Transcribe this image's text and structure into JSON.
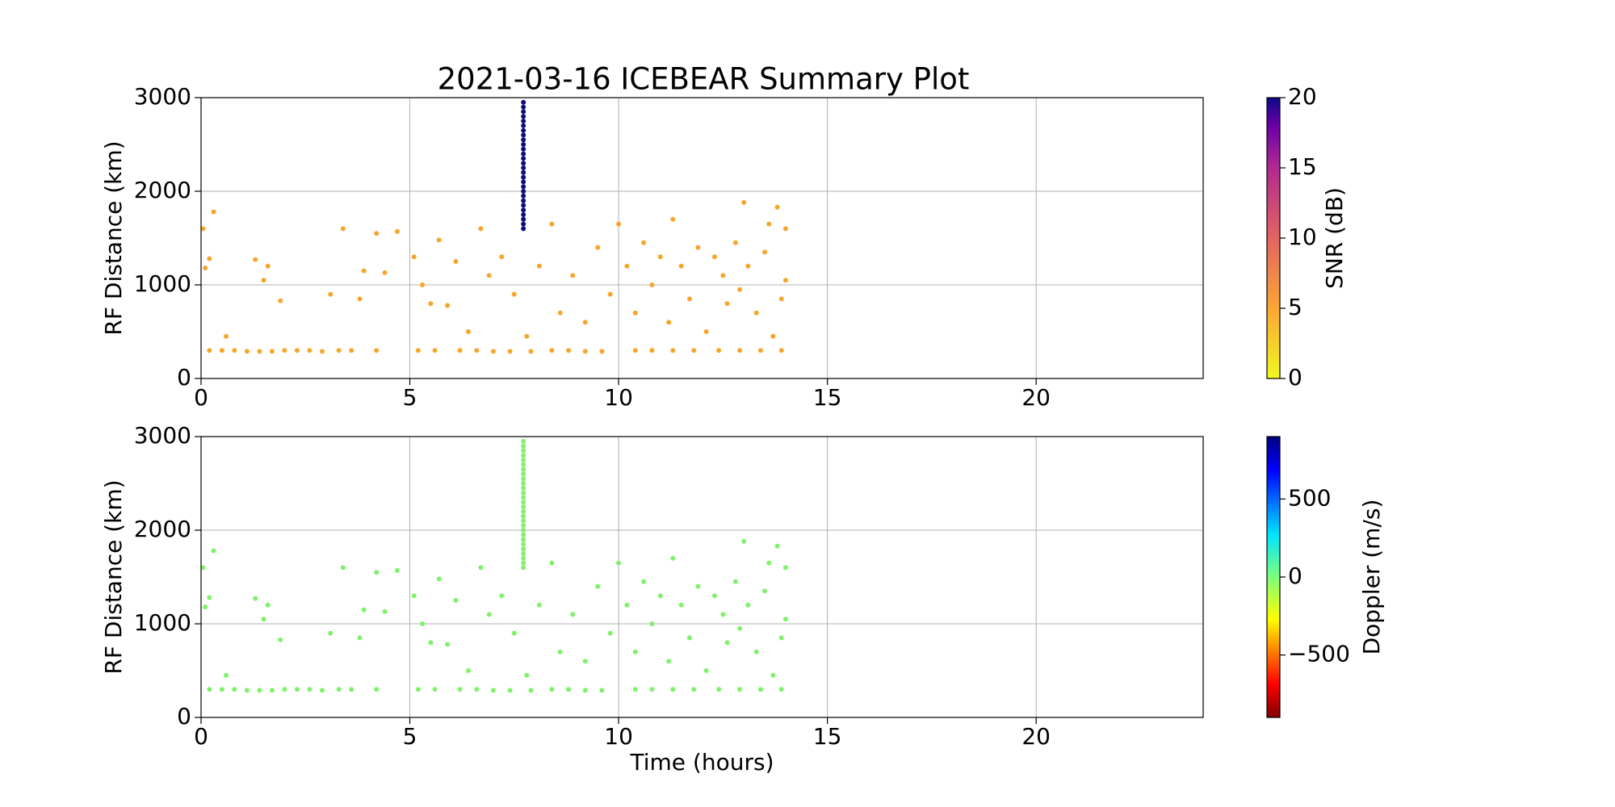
{
  "chart_data": [
    {
      "type": "scatter",
      "title": "2021-03-16 ICEBEAR Summary Plot",
      "ylabel": "RF Distance (km)",
      "xlim": [
        0,
        24
      ],
      "xticks": [
        0,
        5,
        10,
        15,
        20
      ],
      "ylim": [
        0,
        3000
      ],
      "yticks": [
        0,
        1000,
        2000,
        3000
      ],
      "grid": true,
      "colorbar": {
        "label": "SNR (dB)",
        "lim": [
          0,
          20
        ],
        "ticks": [
          0,
          5,
          10,
          15,
          20
        ]
      },
      "series": [
        {
          "color": "#f7a62b",
          "x": [
            0.2,
            0.5,
            0.8,
            1.1,
            1.4,
            1.7,
            2.0,
            2.3,
            2.6,
            2.9,
            3.3,
            3.6,
            4.2,
            5.2,
            5.6,
            6.2,
            6.6,
            7.0,
            7.4,
            7.9,
            8.4,
            8.8,
            9.2,
            9.6,
            10.4,
            10.8,
            11.3,
            11.8,
            12.4,
            12.9,
            13.4,
            13.9,
            0.05,
            0.1,
            0.3,
            0.2,
            0.6,
            1.3,
            1.5,
            1.6,
            1.9,
            3.1,
            3.4,
            3.8,
            3.9,
            4.2,
            4.4,
            4.7,
            5.1,
            5.3,
            5.5,
            5.7,
            5.9,
            6.1,
            6.4,
            6.7,
            6.9,
            7.2,
            7.5,
            7.8,
            8.1,
            8.4,
            8.6,
            8.9,
            9.2,
            9.5,
            9.8,
            10.0,
            10.2,
            10.4,
            10.6,
            10.8,
            11.0,
            11.2,
            11.3,
            11.5,
            11.7,
            11.9,
            12.1,
            12.3,
            12.5,
            12.6,
            12.8,
            12.9,
            13.0,
            13.1,
            13.3,
            13.5,
            13.6,
            13.7,
            13.8,
            13.9,
            14.0,
            14.0
          ],
          "values": [
            300,
            300,
            300,
            290,
            290,
            290,
            300,
            300,
            300,
            290,
            300,
            300,
            300,
            300,
            300,
            300,
            300,
            290,
            290,
            290,
            300,
            300,
            290,
            290,
            300,
            300,
            300,
            300,
            300,
            300,
            300,
            300,
            1600,
            1180,
            1780,
            1280,
            450,
            1270,
            1050,
            1200,
            830,
            900,
            1600,
            850,
            1150,
            1550,
            1130,
            1570,
            1300,
            1000,
            800,
            1480,
            780,
            1250,
            500,
            1600,
            1100,
            1300,
            900,
            450,
            1200,
            1650,
            700,
            1100,
            600,
            1400,
            900,
            1650,
            1200,
            700,
            1450,
            1000,
            1300,
            600,
            1700,
            1200,
            850,
            1400,
            500,
            1300,
            1100,
            800,
            1450,
            950,
            1880,
            1200,
            700,
            1350,
            1650,
            450,
            1830,
            850,
            1600,
            1050
          ]
        },
        {
          "color": "#120c78",
          "x": [
            7.72,
            7.72,
            7.72,
            7.72,
            7.72,
            7.72,
            7.72,
            7.72,
            7.72,
            7.72,
            7.72,
            7.72,
            7.72,
            7.72,
            7.72,
            7.72,
            7.72,
            7.72,
            7.72,
            7.72,
            7.72,
            7.72,
            7.72,
            7.72,
            7.72,
            7.72,
            7.72,
            7.72
          ],
          "values": [
            1600,
            1650,
            1700,
            1750,
            1800,
            1850,
            1900,
            1950,
            2000,
            2050,
            2100,
            2150,
            2200,
            2250,
            2300,
            2350,
            2400,
            2450,
            2500,
            2550,
            2600,
            2650,
            2700,
            2750,
            2800,
            2850,
            2900,
            2950
          ]
        }
      ]
    },
    {
      "type": "scatter",
      "ylabel": "RF Distance (km)",
      "xlabel": "Time (hours)",
      "xlim": [
        0,
        24
      ],
      "xticks": [
        0,
        5,
        10,
        15,
        20
      ],
      "ylim": [
        0,
        3000
      ],
      "yticks": [
        0,
        1000,
        2000,
        3000
      ],
      "grid": true,
      "colorbar": {
        "label": "Doppler (m/s)",
        "lim": [
          -900,
          900
        ],
        "ticks": [
          {
            "value": -500,
            "label": "−500"
          },
          0,
          500
        ]
      },
      "series": [
        {
          "color": "#7ef26a",
          "x": [
            0.2,
            0.5,
            0.8,
            1.1,
            1.4,
            1.7,
            2.0,
            2.3,
            2.6,
            2.9,
            3.3,
            3.6,
            4.2,
            5.2,
            5.6,
            6.2,
            6.6,
            7.0,
            7.4,
            7.9,
            8.4,
            8.8,
            9.2,
            9.6,
            10.4,
            10.8,
            11.3,
            11.8,
            12.4,
            12.9,
            13.4,
            13.9,
            0.05,
            0.1,
            0.3,
            0.2,
            0.6,
            1.3,
            1.5,
            1.6,
            1.9,
            3.1,
            3.4,
            3.8,
            3.9,
            4.2,
            4.4,
            4.7,
            5.1,
            5.3,
            5.5,
            5.7,
            5.9,
            6.1,
            6.4,
            6.7,
            6.9,
            7.2,
            7.5,
            7.8,
            8.1,
            8.4,
            8.6,
            8.9,
            9.2,
            9.5,
            9.8,
            10.0,
            10.2,
            10.4,
            10.6,
            10.8,
            11.0,
            11.2,
            11.3,
            11.5,
            11.7,
            11.9,
            12.1,
            12.3,
            12.5,
            12.6,
            12.8,
            12.9,
            13.0,
            13.1,
            13.3,
            13.5,
            13.6,
            13.7,
            13.8,
            13.9,
            14.0,
            14.0
          ],
          "values": [
            300,
            300,
            300,
            290,
            290,
            290,
            300,
            300,
            300,
            290,
            300,
            300,
            300,
            300,
            300,
            300,
            300,
            290,
            290,
            290,
            300,
            300,
            290,
            290,
            300,
            300,
            300,
            300,
            300,
            300,
            300,
            300,
            1600,
            1180,
            1780,
            1280,
            450,
            1270,
            1050,
            1200,
            830,
            900,
            1600,
            850,
            1150,
            1550,
            1130,
            1570,
            1300,
            1000,
            800,
            1480,
            780,
            1250,
            500,
            1600,
            1100,
            1300,
            900,
            450,
            1200,
            1650,
            700,
            1100,
            600,
            1400,
            900,
            1650,
            1200,
            700,
            1450,
            1000,
            1300,
            600,
            1700,
            1200,
            850,
            1400,
            500,
            1300,
            1100,
            800,
            1450,
            950,
            1880,
            1200,
            700,
            1350,
            1650,
            450,
            1830,
            850,
            1600,
            1050
          ]
        },
        {
          "color": "#86f06c",
          "x": [
            7.72,
            7.72,
            7.72,
            7.72,
            7.72,
            7.72,
            7.72,
            7.72,
            7.72,
            7.72,
            7.72,
            7.72,
            7.72,
            7.72,
            7.72,
            7.72,
            7.72,
            7.72,
            7.72,
            7.72,
            7.72,
            7.72,
            7.72,
            7.72,
            7.72,
            7.72,
            7.72,
            7.72
          ],
          "values": [
            1600,
            1650,
            1700,
            1750,
            1800,
            1850,
            1900,
            1950,
            2000,
            2050,
            2100,
            2150,
            2200,
            2250,
            2300,
            2350,
            2400,
            2450,
            2500,
            2550,
            2600,
            2650,
            2700,
            2750,
            2800,
            2850,
            2900,
            2950
          ]
        }
      ]
    }
  ]
}
